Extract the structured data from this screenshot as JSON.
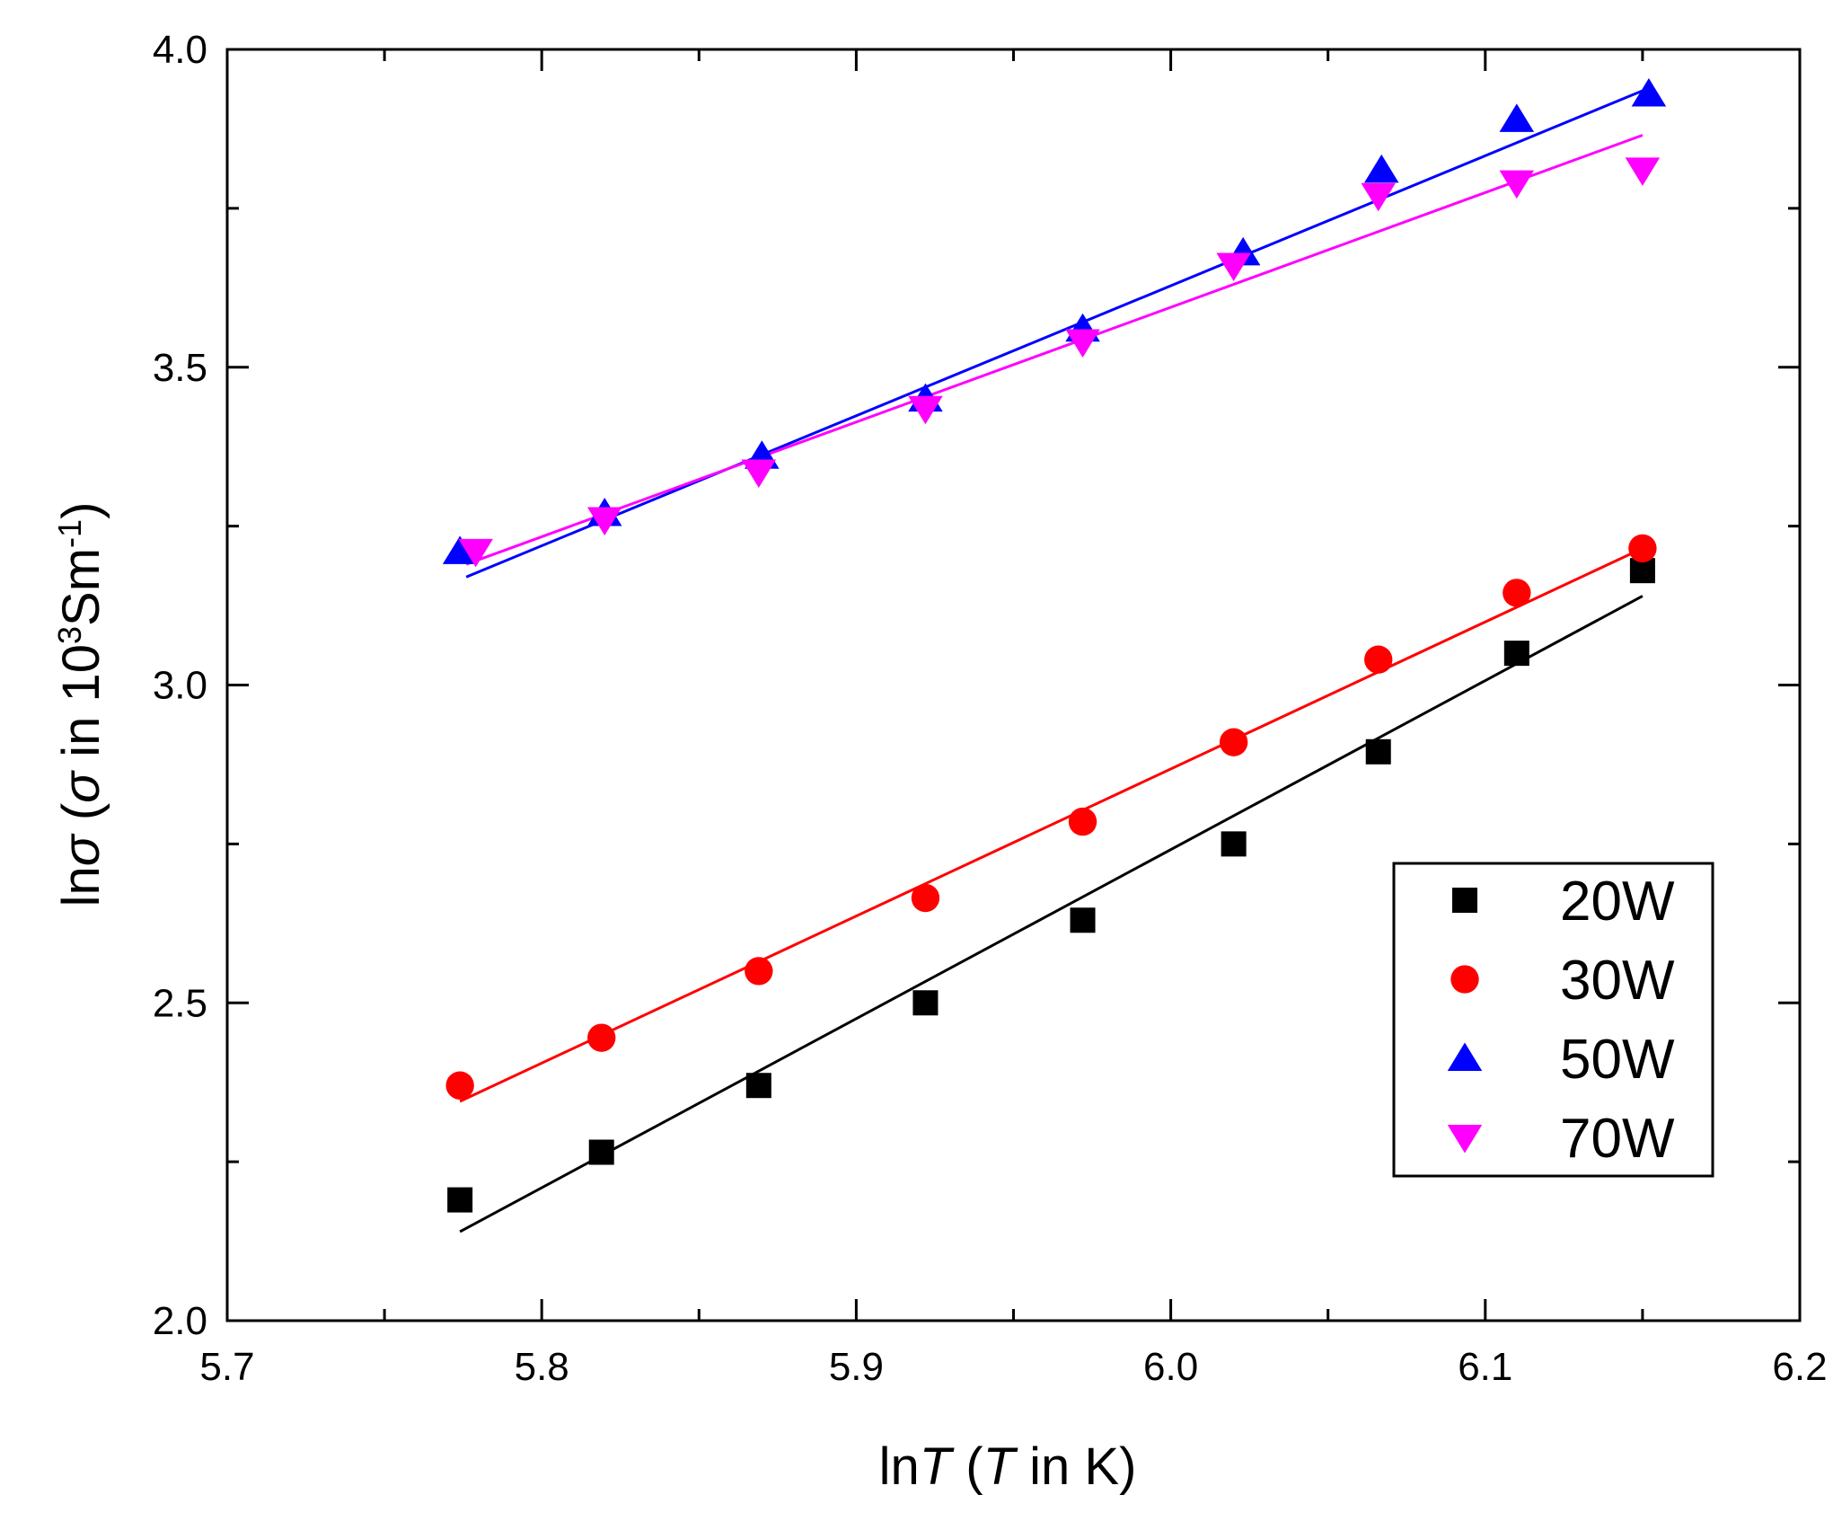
{
  "chart_data": {
    "type": "scatter",
    "xlabel_parts": [
      "ln",
      "T",
      " (",
      "T",
      " in K)"
    ],
    "ylabel_parts": [
      "ln",
      "σ",
      " (",
      "σ",
      " in 10",
      "3",
      "Sm",
      "-1",
      ")"
    ],
    "xlim": [
      5.7,
      6.2
    ],
    "ylim": [
      2.0,
      4.0
    ],
    "x_ticks": [
      5.7,
      5.8,
      5.9,
      6.0,
      6.1,
      6.2
    ],
    "x_tick_labels": [
      "5.7",
      "5.8",
      "5.9",
      "6.0",
      "6.1",
      "6.2"
    ],
    "y_ticks": [
      2.0,
      2.5,
      3.0,
      3.5,
      4.0
    ],
    "y_tick_labels": [
      "2.0",
      "2.5",
      "3.0",
      "3.5",
      "4.0"
    ],
    "grid": false,
    "legend_position": "bottom-right",
    "series": [
      {
        "name": "20W",
        "marker": "square",
        "color": "#000000",
        "x": [
          5.774,
          5.819,
          5.869,
          5.922,
          5.972,
          6.02,
          6.066,
          6.11,
          6.15
        ],
        "y": [
          2.19,
          2.265,
          2.37,
          2.5,
          2.63,
          2.75,
          2.895,
          3.05,
          3.18
        ],
        "fit": {
          "x": [
            5.774,
            6.15
          ],
          "y": [
            2.14,
            3.14
          ]
        }
      },
      {
        "name": "30W",
        "marker": "circle",
        "color": "#ff0000",
        "x": [
          5.774,
          5.819,
          5.869,
          5.922,
          5.972,
          6.02,
          6.066,
          6.11,
          6.15
        ],
        "y": [
          2.37,
          2.445,
          2.55,
          2.665,
          2.785,
          2.91,
          3.04,
          3.145,
          3.215
        ],
        "fit": {
          "x": [
            5.774,
            6.15
          ],
          "y": [
            2.345,
            3.215
          ]
        }
      },
      {
        "name": "50W",
        "marker": "triangle-up",
        "color": "#0000ff",
        "x": [
          5.774,
          5.82,
          5.87,
          5.922,
          5.972,
          6.023,
          6.067,
          6.11,
          6.152
        ],
        "y": [
          3.21,
          3.27,
          3.36,
          3.45,
          3.56,
          3.68,
          3.81,
          3.89,
          3.93
        ],
        "fit": {
          "x": [
            5.776,
            6.15
          ],
          "y": [
            3.17,
            3.935
          ]
        }
      },
      {
        "name": "70W",
        "marker": "triangle-down",
        "color": "#ff00ff",
        "x": [
          5.779,
          5.82,
          5.869,
          5.922,
          5.972,
          6.02,
          6.066,
          6.11,
          6.15
        ],
        "y": [
          3.21,
          3.26,
          3.335,
          3.435,
          3.54,
          3.66,
          3.77,
          3.79,
          3.81
        ],
        "fit": {
          "x": [
            5.776,
            6.15
          ],
          "y": [
            3.19,
            3.865
          ]
        }
      }
    ]
  }
}
